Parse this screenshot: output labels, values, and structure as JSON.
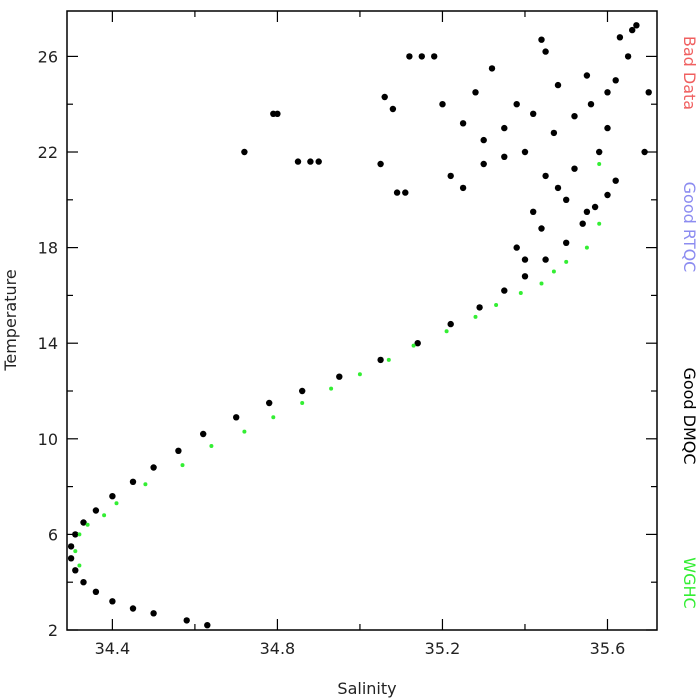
{
  "chart_data": {
    "type": "scatter",
    "xlabel": "Salinity",
    "ylabel": "Temperature",
    "xlim": [
      34.29,
      35.72
    ],
    "ylim": [
      2.0,
      27.9
    ],
    "xticks": [
      34.4,
      34.8,
      35.2,
      35.6
    ],
    "yticks": [
      2,
      6,
      10,
      14,
      18,
      22,
      26
    ],
    "xtick_labels": [
      "34.4",
      "34.8",
      "35.2",
      "35.6"
    ],
    "ytick_labels": [
      "2",
      "6",
      "10",
      "14",
      "18",
      "22",
      "26"
    ],
    "grid": false,
    "legend": {
      "placement": "right-outside-vertical",
      "entries": [
        {
          "label": "Bad Data",
          "color": "#f06060"
        },
        {
          "label": "Good RTQC",
          "color": "#8c8cf0"
        },
        {
          "label": "Good DMQC",
          "color": "#000000"
        },
        {
          "label": "WGHC",
          "color": "#33ee33"
        }
      ]
    },
    "series": [
      {
        "key": "dmqc",
        "color": "#000000",
        "points": [
          [
            34.63,
            2.2
          ],
          [
            34.58,
            2.4
          ],
          [
            34.5,
            2.7
          ],
          [
            34.45,
            2.9
          ],
          [
            34.4,
            3.2
          ],
          [
            34.36,
            3.6
          ],
          [
            34.33,
            4.0
          ],
          [
            34.31,
            4.5
          ],
          [
            34.3,
            5.0
          ],
          [
            34.3,
            5.5
          ],
          [
            34.31,
            6.0
          ],
          [
            34.33,
            6.5
          ],
          [
            34.36,
            7.0
          ],
          [
            34.4,
            7.6
          ],
          [
            34.45,
            8.2
          ],
          [
            34.5,
            8.8
          ],
          [
            34.56,
            9.5
          ],
          [
            34.62,
            10.2
          ],
          [
            34.7,
            10.9
          ],
          [
            34.78,
            11.5
          ],
          [
            34.86,
            12.0
          ],
          [
            34.95,
            12.6
          ],
          [
            35.05,
            13.3
          ],
          [
            35.14,
            14.0
          ],
          [
            35.22,
            14.8
          ],
          [
            35.29,
            15.5
          ],
          [
            35.35,
            16.2
          ],
          [
            35.4,
            16.8
          ],
          [
            35.45,
            17.5
          ],
          [
            35.5,
            18.2
          ],
          [
            35.54,
            19.0
          ],
          [
            35.57,
            19.7
          ],
          [
            35.6,
            20.2
          ],
          [
            35.62,
            20.8
          ],
          [
            35.38,
            18.0
          ],
          [
            35.42,
            19.5
          ],
          [
            35.48,
            20.5
          ],
          [
            35.52,
            21.3
          ],
          [
            35.44,
            18.8
          ],
          [
            35.55,
            19.5
          ],
          [
            35.4,
            17.5
          ],
          [
            35.5,
            20.0
          ],
          [
            35.45,
            21.0
          ],
          [
            35.58,
            22.0
          ],
          [
            35.6,
            23.0
          ],
          [
            35.56,
            24.0
          ],
          [
            35.62,
            25.0
          ],
          [
            35.65,
            26.0
          ],
          [
            35.67,
            27.3
          ],
          [
            35.63,
            26.8
          ],
          [
            35.66,
            27.1
          ],
          [
            35.4,
            22.0
          ],
          [
            35.35,
            23.0
          ],
          [
            35.3,
            22.5
          ],
          [
            35.25,
            23.2
          ],
          [
            35.2,
            24.0
          ],
          [
            35.28,
            24.5
          ],
          [
            35.32,
            25.5
          ],
          [
            35.45,
            26.2
          ],
          [
            35.55,
            25.2
          ],
          [
            35.6,
            24.5
          ],
          [
            35.52,
            23.5
          ],
          [
            35.42,
            23.6
          ],
          [
            35.48,
            24.8
          ],
          [
            35.38,
            24.0
          ],
          [
            35.22,
            21.0
          ],
          [
            35.25,
            20.5
          ],
          [
            35.3,
            21.5
          ],
          [
            35.35,
            21.8
          ],
          [
            35.47,
            22.8
          ],
          [
            35.18,
            26.0
          ],
          [
            35.15,
            26.0
          ],
          [
            35.12,
            26.0
          ],
          [
            35.06,
            24.3
          ],
          [
            35.08,
            23.8
          ],
          [
            35.05,
            21.5
          ],
          [
            35.09,
            20.3
          ],
          [
            35.11,
            20.3
          ],
          [
            34.72,
            22.0
          ],
          [
            34.79,
            23.6
          ],
          [
            34.8,
            23.6
          ],
          [
            34.85,
            21.6
          ],
          [
            34.88,
            21.6
          ],
          [
            34.9,
            21.6
          ],
          [
            35.44,
            26.7
          ],
          [
            35.69,
            22.0
          ],
          [
            35.7,
            24.5
          ]
        ]
      },
      {
        "key": "wghc",
        "color": "#33ee33",
        "points": [
          [
            34.32,
            4.7
          ],
          [
            34.31,
            5.3
          ],
          [
            34.32,
            6.0
          ],
          [
            34.34,
            6.4
          ],
          [
            34.38,
            6.8
          ],
          [
            34.41,
            7.3
          ],
          [
            34.48,
            8.1
          ],
          [
            34.57,
            8.9
          ],
          [
            34.64,
            9.7
          ],
          [
            34.72,
            10.3
          ],
          [
            34.79,
            10.9
          ],
          [
            34.86,
            11.5
          ],
          [
            34.93,
            12.1
          ],
          [
            35.0,
            12.7
          ],
          [
            35.07,
            13.3
          ],
          [
            35.13,
            13.9
          ],
          [
            35.21,
            14.5
          ],
          [
            35.28,
            15.1
          ],
          [
            35.33,
            15.6
          ],
          [
            35.39,
            16.1
          ],
          [
            35.44,
            16.5
          ],
          [
            35.47,
            17.0
          ],
          [
            35.5,
            17.4
          ],
          [
            35.55,
            18.0
          ],
          [
            35.58,
            19.0
          ],
          [
            35.58,
            21.5
          ]
        ]
      }
    ]
  }
}
